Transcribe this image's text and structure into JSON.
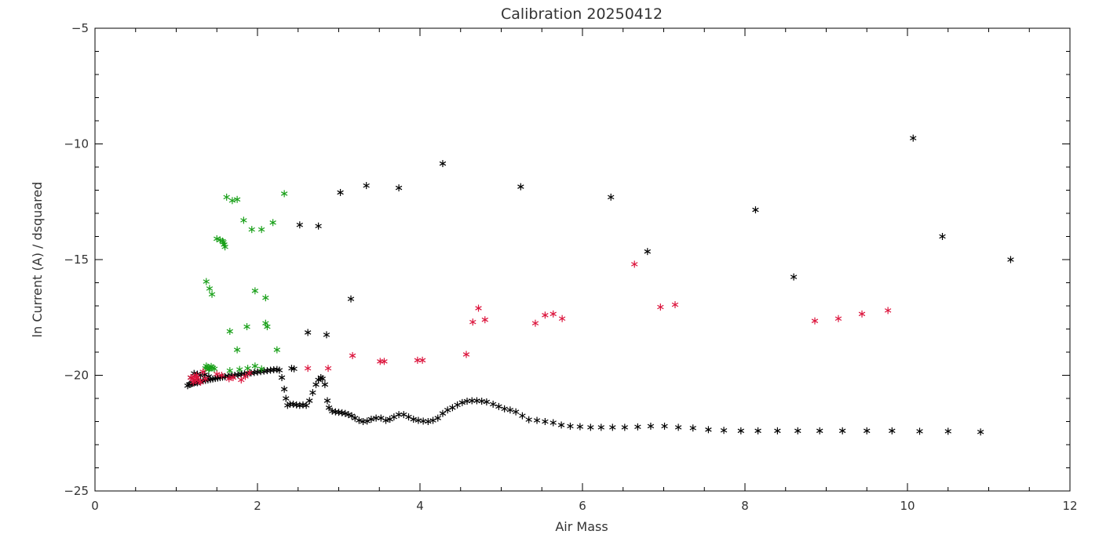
{
  "chart_data": {
    "type": "scatter",
    "title": "Calibration 20250412",
    "xlabel": "Air Mass",
    "ylabel": "ln Current (A) / dsquared",
    "xlim": [
      0,
      12
    ],
    "ylim": [
      -25,
      -5
    ],
    "x_ticks": [
      0,
      2,
      4,
      6,
      8,
      10,
      12
    ],
    "y_ticks": [
      -25,
      -20,
      -15,
      -10,
      -5
    ],
    "x_tick_labels": [
      "0",
      "2",
      "4",
      "6",
      "8",
      "10",
      "12"
    ],
    "y_tick_labels": [
      "−25",
      "−20",
      "−15",
      "−10",
      "−5"
    ],
    "marker": "asterisk",
    "grid": false,
    "series": [
      {
        "color": "#000000",
        "points": [
          [
            1.14,
            -20.45
          ],
          [
            1.16,
            -20.4
          ],
          [
            1.18,
            -20.38
          ],
          [
            1.2,
            -20.35
          ],
          [
            1.22,
            -20.33
          ],
          [
            1.24,
            -20.3
          ],
          [
            1.26,
            -20.32
          ],
          [
            1.28,
            -20.28
          ],
          [
            1.3,
            -20.25
          ],
          [
            1.33,
            -20.24
          ],
          [
            1.36,
            -20.22
          ],
          [
            1.39,
            -20.2
          ],
          [
            1.42,
            -20.18
          ],
          [
            1.45,
            -20.16
          ],
          [
            1.48,
            -20.14
          ],
          [
            1.51,
            -20.12
          ],
          [
            1.54,
            -20.1
          ],
          [
            1.57,
            -20.08
          ],
          [
            1.6,
            -20.06
          ],
          [
            1.64,
            -20.04
          ],
          [
            1.68,
            -20.02
          ],
          [
            1.72,
            -20.0
          ],
          [
            1.76,
            -19.98
          ],
          [
            1.8,
            -19.96
          ],
          [
            1.84,
            -19.94
          ],
          [
            1.88,
            -19.92
          ],
          [
            1.92,
            -19.9
          ],
          [
            1.96,
            -19.88
          ],
          [
            2.0,
            -19.86
          ],
          [
            2.04,
            -19.84
          ],
          [
            2.08,
            -19.82
          ],
          [
            2.12,
            -19.8
          ],
          [
            2.16,
            -19.78
          ],
          [
            2.2,
            -19.76
          ],
          [
            2.24,
            -19.75
          ],
          [
            2.27,
            -19.78
          ],
          [
            1.22,
            -19.92
          ],
          [
            1.26,
            -19.95
          ],
          [
            1.3,
            -20.0
          ],
          [
            1.35,
            -19.98
          ],
          [
            1.4,
            -20.05
          ],
          [
            1.18,
            -20.1
          ],
          [
            2.3,
            -20.1
          ],
          [
            2.33,
            -20.6
          ],
          [
            2.35,
            -21.0
          ],
          [
            2.37,
            -21.3
          ],
          [
            2.4,
            -21.25
          ],
          [
            2.44,
            -21.25
          ],
          [
            2.48,
            -21.28
          ],
          [
            2.52,
            -21.3
          ],
          [
            2.56,
            -21.28
          ],
          [
            2.6,
            -21.3
          ],
          [
            2.64,
            -21.1
          ],
          [
            2.68,
            -20.75
          ],
          [
            2.72,
            -20.4
          ],
          [
            2.75,
            -20.2
          ],
          [
            2.78,
            -20.1
          ],
          [
            2.8,
            -20.15
          ],
          [
            2.83,
            -20.4
          ],
          [
            2.86,
            -21.1
          ],
          [
            2.88,
            -21.4
          ],
          [
            2.92,
            -21.55
          ],
          [
            2.96,
            -21.58
          ],
          [
            3.0,
            -21.6
          ],
          [
            3.04,
            -21.62
          ],
          [
            3.08,
            -21.65
          ],
          [
            3.12,
            -21.7
          ],
          [
            3.16,
            -21.75
          ],
          [
            3.2,
            -21.85
          ],
          [
            3.25,
            -21.95
          ],
          [
            3.3,
            -22.0
          ],
          [
            3.35,
            -21.98
          ],
          [
            3.4,
            -21.9
          ],
          [
            3.46,
            -21.85
          ],
          [
            3.52,
            -21.85
          ],
          [
            3.58,
            -21.95
          ],
          [
            3.63,
            -21.9
          ],
          [
            3.68,
            -21.8
          ],
          [
            3.74,
            -21.7
          ],
          [
            3.8,
            -21.7
          ],
          [
            3.86,
            -21.8
          ],
          [
            3.92,
            -21.9
          ],
          [
            3.98,
            -21.95
          ],
          [
            4.04,
            -21.98
          ],
          [
            4.1,
            -22.0
          ],
          [
            4.16,
            -21.95
          ],
          [
            4.22,
            -21.85
          ],
          [
            4.28,
            -21.65
          ],
          [
            4.34,
            -21.5
          ],
          [
            4.4,
            -21.4
          ],
          [
            4.46,
            -21.28
          ],
          [
            4.52,
            -21.18
          ],
          [
            4.58,
            -21.12
          ],
          [
            4.64,
            -21.1
          ],
          [
            4.7,
            -21.1
          ],
          [
            4.76,
            -21.12
          ],
          [
            4.82,
            -21.15
          ],
          [
            4.9,
            -21.25
          ],
          [
            4.97,
            -21.35
          ],
          [
            5.04,
            -21.45
          ],
          [
            5.11,
            -21.5
          ],
          [
            5.18,
            -21.58
          ],
          [
            5.26,
            -21.75
          ],
          [
            5.34,
            -21.92
          ],
          [
            5.44,
            -21.95
          ],
          [
            5.54,
            -22.0
          ],
          [
            5.64,
            -22.05
          ],
          [
            5.74,
            -22.15
          ],
          [
            5.85,
            -22.2
          ],
          [
            5.97,
            -22.22
          ],
          [
            6.1,
            -22.25
          ],
          [
            6.23,
            -22.25
          ],
          [
            6.37,
            -22.25
          ],
          [
            6.52,
            -22.25
          ],
          [
            6.68,
            -22.23
          ],
          [
            6.84,
            -22.2
          ],
          [
            7.01,
            -22.2
          ],
          [
            7.18,
            -22.25
          ],
          [
            7.36,
            -22.28
          ],
          [
            7.55,
            -22.35
          ],
          [
            7.74,
            -22.38
          ],
          [
            7.95,
            -22.4
          ],
          [
            8.16,
            -22.4
          ],
          [
            8.4,
            -22.4
          ],
          [
            8.65,
            -22.4
          ],
          [
            8.92,
            -22.4
          ],
          [
            9.2,
            -22.4
          ],
          [
            9.5,
            -22.4
          ],
          [
            9.81,
            -22.4
          ],
          [
            10.15,
            -22.42
          ],
          [
            10.5,
            -22.42
          ],
          [
            10.9,
            -22.45
          ],
          [
            2.42,
            -19.7
          ],
          [
            2.45,
            -19.72
          ],
          [
            2.62,
            -18.15
          ],
          [
            2.85,
            -18.25
          ],
          [
            3.15,
            -16.7
          ],
          [
            2.52,
            -13.5
          ],
          [
            2.75,
            -13.55
          ],
          [
            3.02,
            -12.1
          ],
          [
            3.34,
            -11.8
          ],
          [
            3.74,
            -11.9
          ],
          [
            4.28,
            -10.85
          ],
          [
            5.24,
            -11.85
          ],
          [
            6.35,
            -12.3
          ],
          [
            6.8,
            -14.65
          ],
          [
            8.13,
            -12.85
          ],
          [
            8.6,
            -15.75
          ],
          [
            10.07,
            -9.75
          ],
          [
            10.43,
            -14.0
          ],
          [
            11.27,
            -15.0
          ]
        ]
      },
      {
        "color": "#19a019",
        "points": [
          [
            1.37,
            -19.6
          ],
          [
            1.39,
            -19.65
          ],
          [
            1.41,
            -19.7
          ],
          [
            1.43,
            -19.62
          ],
          [
            1.45,
            -19.68
          ],
          [
            1.4,
            -19.75
          ],
          [
            1.47,
            -19.72
          ],
          [
            1.36,
            -19.7
          ],
          [
            1.66,
            -19.8
          ],
          [
            1.78,
            -19.75
          ],
          [
            1.88,
            -19.7
          ],
          [
            1.97,
            -19.6
          ],
          [
            2.05,
            -19.72
          ],
          [
            2.24,
            -18.9
          ],
          [
            1.75,
            -18.9
          ],
          [
            1.66,
            -18.1
          ],
          [
            1.87,
            -17.9
          ],
          [
            2.1,
            -17.75
          ],
          [
            2.12,
            -17.9
          ],
          [
            1.37,
            -15.95
          ],
          [
            1.41,
            -16.25
          ],
          [
            1.44,
            -16.5
          ],
          [
            1.97,
            -16.35
          ],
          [
            2.1,
            -16.65
          ],
          [
            1.5,
            -14.1
          ],
          [
            1.54,
            -14.15
          ],
          [
            1.57,
            -14.2
          ],
          [
            1.59,
            -14.35
          ],
          [
            1.6,
            -14.45
          ],
          [
            1.58,
            -14.25
          ],
          [
            1.83,
            -13.3
          ],
          [
            1.93,
            -13.7
          ],
          [
            2.05,
            -13.7
          ],
          [
            2.19,
            -13.4
          ],
          [
            1.62,
            -12.3
          ],
          [
            1.69,
            -12.45
          ],
          [
            1.75,
            -12.4
          ],
          [
            2.33,
            -12.15
          ]
        ]
      },
      {
        "color": "#dc143c",
        "points": [
          [
            1.18,
            -20.1
          ],
          [
            1.2,
            -20.15
          ],
          [
            1.22,
            -20.05
          ],
          [
            1.24,
            -20.2
          ],
          [
            1.26,
            -20.1
          ],
          [
            1.28,
            -20.25
          ],
          [
            1.25,
            -20.0
          ],
          [
            1.21,
            -20.3
          ],
          [
            1.3,
            -20.3
          ],
          [
            1.33,
            -19.85
          ],
          [
            1.36,
            -20.15
          ],
          [
            1.5,
            -19.95
          ],
          [
            1.56,
            -20.0
          ],
          [
            1.65,
            -20.15
          ],
          [
            1.7,
            -20.1
          ],
          [
            1.8,
            -20.2
          ],
          [
            1.85,
            -20.05
          ],
          [
            1.9,
            -19.9
          ],
          [
            2.62,
            -19.7
          ],
          [
            2.87,
            -19.7
          ],
          [
            3.17,
            -19.15
          ],
          [
            3.51,
            -19.4
          ],
          [
            3.56,
            -19.4
          ],
          [
            3.97,
            -19.35
          ],
          [
            4.03,
            -19.35
          ],
          [
            4.57,
            -19.1
          ],
          [
            4.65,
            -17.7
          ],
          [
            4.72,
            -17.1
          ],
          [
            4.8,
            -17.6
          ],
          [
            5.42,
            -17.75
          ],
          [
            5.54,
            -17.4
          ],
          [
            5.64,
            -17.35
          ],
          [
            5.75,
            -17.55
          ],
          [
            6.64,
            -15.2
          ],
          [
            6.96,
            -17.05
          ],
          [
            7.14,
            -16.95
          ],
          [
            8.86,
            -17.65
          ],
          [
            9.15,
            -17.55
          ],
          [
            9.44,
            -17.35
          ],
          [
            9.76,
            -17.2
          ]
        ]
      }
    ]
  }
}
